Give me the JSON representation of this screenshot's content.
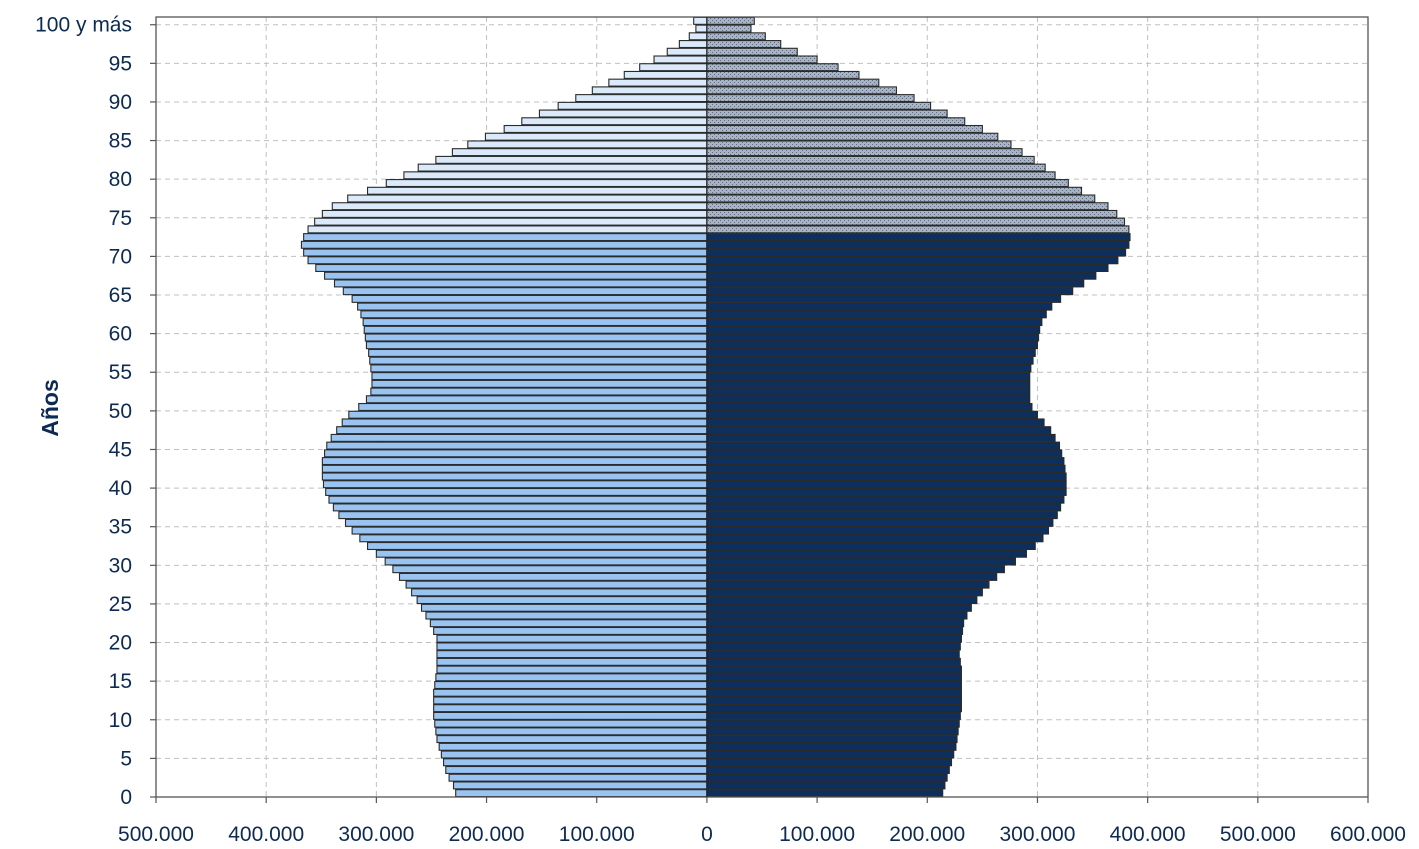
{
  "chart_data": {
    "type": "bar",
    "orientation": "horizontal-pyramid",
    "ylabel": "Años",
    "xlabel": "",
    "x_tick_labels": [
      "500.000",
      "400.000",
      "300.000",
      "200.000",
      "100.000",
      "0",
      "100.000",
      "200.000",
      "300.000",
      "400.000",
      "500.000",
      "600.000"
    ],
    "y_tick_labels": [
      "0",
      "5",
      "10",
      "15",
      "20",
      "25",
      "30",
      "35",
      "40",
      "45",
      "50",
      "55",
      "60",
      "65",
      "70",
      "75",
      "80",
      "85",
      "90",
      "95",
      "100 y más"
    ],
    "xlim": [
      -500000,
      600000
    ],
    "ylim": [
      0,
      101
    ],
    "grid": true,
    "ages": [
      0,
      1,
      2,
      3,
      4,
      5,
      6,
      7,
      8,
      9,
      10,
      11,
      12,
      13,
      14,
      15,
      16,
      17,
      18,
      19,
      20,
      21,
      22,
      23,
      24,
      25,
      26,
      27,
      28,
      29,
      30,
      31,
      32,
      33,
      34,
      35,
      36,
      37,
      38,
      39,
      40,
      41,
      42,
      43,
      44,
      45,
      46,
      47,
      48,
      49,
      50,
      51,
      52,
      53,
      54,
      55,
      56,
      57,
      58,
      59,
      60,
      61,
      62,
      63,
      64,
      65,
      66,
      67,
      68,
      69,
      70,
      71,
      72,
      73,
      74,
      75,
      76,
      77,
      78,
      79,
      80,
      81,
      82,
      83,
      84,
      85,
      86,
      87,
      88,
      89,
      90,
      91,
      92,
      93,
      94,
      95,
      96,
      97,
      98,
      99,
      100
    ],
    "series": [
      {
        "side": "left",
        "values": [
          228000,
          230000,
          234000,
          237000,
          239000,
          241000,
          243000,
          245000,
          246000,
          247000,
          248000,
          248000,
          248000,
          248000,
          247000,
          246000,
          245000,
          245000,
          245000,
          245000,
          245000,
          248000,
          251000,
          255000,
          259000,
          263000,
          268000,
          273000,
          279000,
          285000,
          292000,
          300000,
          308000,
          315000,
          322000,
          328000,
          334000,
          339000,
          343000,
          346000,
          348000,
          349000,
          349000,
          349000,
          347000,
          345000,
          341000,
          336000,
          331000,
          325000,
          316000,
          309000,
          305000,
          304000,
          304000,
          305000,
          306000,
          307000,
          309000,
          310000,
          311000,
          312000,
          314000,
          317000,
          322000,
          330000,
          338000,
          347000,
          355000,
          362000,
          366000,
          368000,
          366000,
          362000,
          356000,
          349000,
          340000,
          326000,
          308000,
          291000,
          275000,
          262000,
          246000,
          231000,
          217000,
          201000,
          184000,
          168000,
          152000,
          135000,
          119000,
          104000,
          89000,
          75000,
          61000,
          48000,
          36000,
          25000,
          16000,
          10000,
          12000
        ],
        "colors": {
          "main": "#99c4f2",
          "old": "#dbeafa"
        }
      },
      {
        "side": "right",
        "values": [
          214000,
          216000,
          218000,
          220000,
          222000,
          224000,
          226000,
          227000,
          228000,
          229000,
          230000,
          231000,
          231000,
          231000,
          231000,
          231000,
          231000,
          230000,
          229000,
          230000,
          231000,
          232000,
          233000,
          236000,
          240000,
          245000,
          250000,
          256000,
          263000,
          270000,
          280000,
          290000,
          298000,
          305000,
          310000,
          314000,
          318000,
          321000,
          324000,
          326000,
          326000,
          326000,
          325000,
          324000,
          322000,
          320000,
          316000,
          312000,
          306000,
          300000,
          295000,
          293000,
          293000,
          293000,
          293000,
          294000,
          296000,
          298000,
          300000,
          301000,
          302000,
          304000,
          308000,
          313000,
          321000,
          332000,
          342000,
          353000,
          364000,
          373000,
          380000,
          383000,
          384000,
          383000,
          379000,
          372000,
          364000,
          352000,
          340000,
          328000,
          316000,
          307000,
          297000,
          286000,
          276000,
          264000,
          250000,
          234000,
          218000,
          203000,
          188000,
          172000,
          156000,
          138000,
          119000,
          100000,
          82000,
          67000,
          53000,
          40000,
          43000
        ],
        "colors": {
          "main": "#0d2f5e",
          "old": "#a8b4c4"
        }
      }
    ],
    "colors": {
      "axis": "#555555",
      "grid": "#c0c0c0",
      "text": "#0d2a52",
      "bar_stroke": "#2a2a2a"
    }
  }
}
